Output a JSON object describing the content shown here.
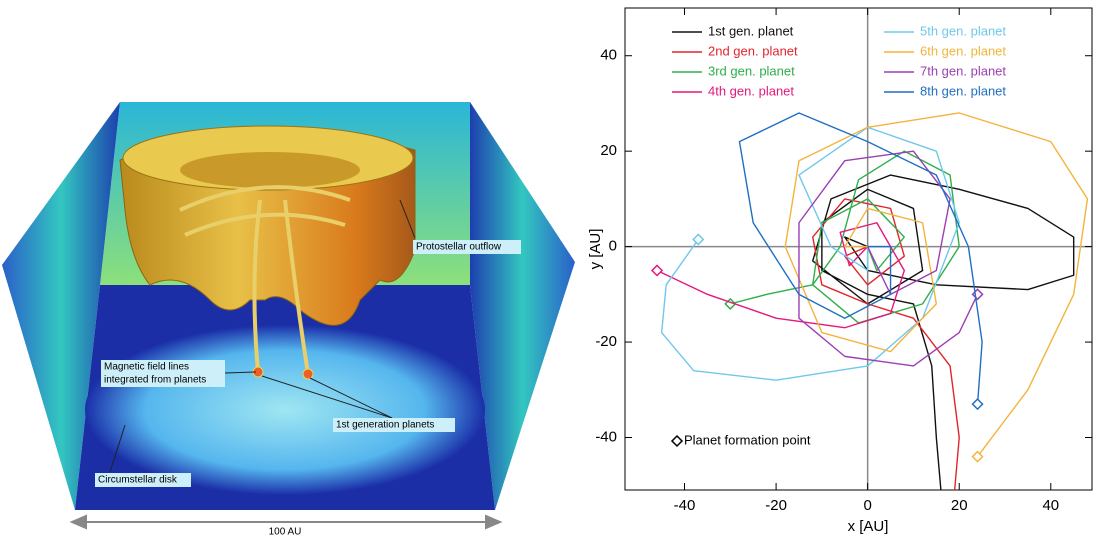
{
  "illustration": {
    "labels": [
      "Protostellar outflow",
      "Magnetic field lines",
      "integrated from planets",
      "1st generation planets",
      "Circumstellar disk"
    ],
    "scale_label": "100 AU"
  },
  "chart_data": {
    "type": "line",
    "x_label": "x [AU]",
    "y_label": "y [AU]",
    "xlim": [
      -53,
      49
    ],
    "ylim": [
      -51,
      50
    ],
    "xticks": [
      -40,
      -20,
      0,
      20,
      40
    ],
    "yticks": [
      -40,
      -20,
      0,
      20,
      40
    ],
    "zero_lines": true,
    "marker_label": "Planet formation point",
    "series": [
      {
        "name": "1st gen. planet",
        "color": "#111111",
        "start_marker": false,
        "x": [
          16,
          15,
          14,
          10,
          0,
          -10,
          -10,
          0,
          10,
          12,
          0,
          -12,
          -8,
          5,
          20,
          35,
          45,
          45,
          35,
          15,
          0,
          -5,
          0
        ],
        "y": [
          -51,
          -40,
          -25,
          -12,
          -10,
          -5,
          5,
          12,
          8,
          -5,
          -12,
          -3,
          10,
          15,
          12,
          8,
          2,
          -6,
          -9,
          -8,
          -5,
          2,
          0
        ]
      },
      {
        "name": "2nd gen. planet",
        "color": "#e0252b",
        "start_marker": false,
        "x": [
          19,
          20,
          18,
          10,
          0,
          -10,
          -12,
          -5,
          5,
          8,
          0,
          -5,
          0
        ],
        "y": [
          -51,
          -40,
          -25,
          -15,
          -12,
          -8,
          2,
          10,
          8,
          -2,
          -8,
          -2,
          0
        ]
      },
      {
        "name": "3rd gen. planet",
        "color": "#2fae4a",
        "start_marker": true,
        "x": [
          -30,
          -22,
          -12,
          -6,
          -2,
          8,
          18,
          20,
          12,
          -2,
          -12,
          -10,
          0,
          8,
          2,
          0
        ],
        "y": [
          -12,
          -10,
          -8,
          0,
          14,
          20,
          15,
          0,
          -12,
          -16,
          -8,
          5,
          10,
          2,
          -5,
          0
        ]
      },
      {
        "name": "4th gen. planet",
        "color": "#e3197d",
        "start_marker": true,
        "x": [
          -46,
          -35,
          -20,
          -5,
          5,
          8,
          2,
          -6,
          -4,
          0
        ],
        "y": [
          -5,
          -10,
          -15,
          -17,
          -14,
          -5,
          5,
          3,
          -4,
          0
        ]
      },
      {
        "name": "5th gen. planet",
        "color": "#6fc8ec",
        "start_marker": true,
        "x": [
          -37,
          -44,
          -45,
          -38,
          -20,
          0,
          12,
          20,
          15,
          0,
          -15,
          -8,
          0,
          0
        ],
        "y": [
          1.5,
          -8,
          -18,
          -26,
          -28,
          -25,
          -15,
          5,
          20,
          25,
          15,
          0,
          -5,
          0
        ]
      },
      {
        "name": "6th gen. planet",
        "color": "#f2b43c",
        "start_marker": true,
        "x": [
          24,
          35,
          45,
          48,
          40,
          20,
          0,
          -15,
          -18,
          -10,
          5,
          15,
          12,
          0,
          -5,
          0
        ],
        "y": [
          -44,
          -30,
          -10,
          10,
          22,
          28,
          25,
          18,
          0,
          -18,
          -22,
          -12,
          5,
          8,
          0,
          0
        ]
      },
      {
        "name": "7th gen. planet",
        "color": "#9b3fb5",
        "start_marker": true,
        "x": [
          24,
          20,
          10,
          -5,
          -15,
          -15,
          -5,
          10,
          18,
          15,
          5,
          0
        ],
        "y": [
          -10,
          -18,
          -25,
          -23,
          -15,
          5,
          18,
          20,
          10,
          -5,
          -10,
          0
        ]
      },
      {
        "name": "8th gen. planet",
        "color": "#1f6fc4",
        "start_marker": true,
        "x": [
          24,
          25,
          22,
          15,
          0,
          -15,
          -28,
          -25,
          -15,
          -5,
          5,
          5,
          0
        ],
        "y": [
          -33,
          -20,
          0,
          15,
          22,
          28,
          22,
          5,
          -10,
          -15,
          -10,
          0,
          0
        ]
      }
    ]
  }
}
